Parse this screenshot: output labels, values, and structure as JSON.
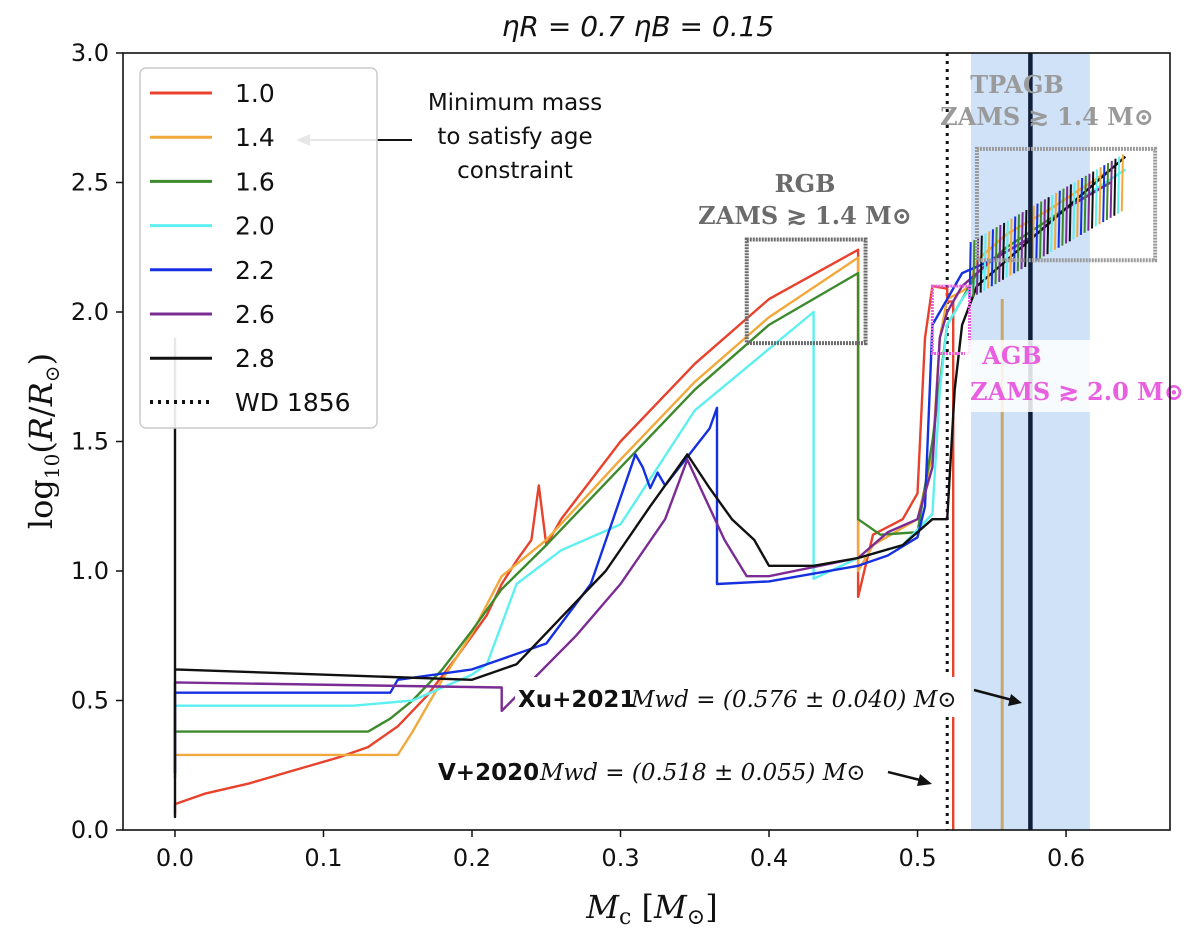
{
  "chart_data": {
    "type": "line",
    "title": "ηR = 0.7  ηB = 0.15",
    "xlabel": "Mc [M⊙]",
    "ylabel": "log10(R/R⊙)",
    "xlim": [
      -0.035,
      0.67
    ],
    "ylim": [
      0.0,
      3.0
    ],
    "xticks": [
      "0.0",
      "0.1",
      "0.2",
      "0.3",
      "0.4",
      "0.5",
      "0.6"
    ],
    "yticks": [
      "0.0",
      "0.5",
      "1.0",
      "1.5",
      "2.0",
      "2.5",
      "3.0"
    ],
    "legend_position": "top-left",
    "series": [
      {
        "name": "1.0",
        "color": "#e8412c",
        "x": [
          0.0,
          0.0,
          0.02,
          0.05,
          0.08,
          0.11,
          0.13,
          0.15,
          0.17,
          0.19,
          0.21,
          0.22,
          0.23,
          0.24,
          0.245,
          0.25,
          0.26,
          0.3,
          0.35,
          0.4,
          0.46,
          0.46,
          0.47,
          0.49,
          0.5,
          0.505,
          0.51,
          0.52,
          0.52,
          0.524,
          0.524
        ],
        "y": [
          0.06,
          0.1,
          0.14,
          0.18,
          0.23,
          0.28,
          0.32,
          0.4,
          0.52,
          0.67,
          0.83,
          0.95,
          1.04,
          1.12,
          1.33,
          1.1,
          1.2,
          1.5,
          1.8,
          2.05,
          2.24,
          0.9,
          1.14,
          1.2,
          1.3,
          1.9,
          2.1,
          2.09,
          2.04,
          2.04,
          0.0
        ]
      },
      {
        "name": "1.4",
        "color": "#f2a93b",
        "x": [
          0.0,
          0.0,
          0.15,
          0.16,
          0.18,
          0.2,
          0.22,
          0.25,
          0.3,
          0.35,
          0.4,
          0.46,
          0.46,
          0.47,
          0.5,
          0.51,
          0.515,
          0.52,
          0.53,
          0.535,
          0.54,
          0.56,
          0.59,
          0.63
        ],
        "y": [
          0.22,
          0.29,
          0.29,
          0.38,
          0.58,
          0.76,
          0.98,
          1.12,
          1.43,
          1.73,
          1.98,
          2.21,
          1.0,
          1.1,
          1.2,
          1.45,
          1.9,
          2.05,
          2.08,
          2.1,
          2.2,
          2.3,
          2.4,
          2.55
        ]
      },
      {
        "name": "1.6",
        "color": "#3d8a2c",
        "x": [
          0.0,
          0.0,
          0.13,
          0.145,
          0.16,
          0.18,
          0.2,
          0.22,
          0.25,
          0.3,
          0.35,
          0.4,
          0.46,
          0.46,
          0.475,
          0.5,
          0.51,
          0.52,
          0.53,
          0.54,
          0.56,
          0.6,
          0.63
        ],
        "y": [
          0.2,
          0.38,
          0.38,
          0.43,
          0.5,
          0.62,
          0.77,
          0.93,
          1.1,
          1.4,
          1.7,
          1.95,
          2.15,
          1.2,
          1.14,
          1.15,
          1.5,
          1.95,
          2.05,
          2.15,
          2.25,
          2.4,
          2.55
        ]
      },
      {
        "name": "2.0",
        "color": "#5ef0f0",
        "x": [
          0.0,
          0.0,
          0.12,
          0.16,
          0.2,
          0.21,
          0.23,
          0.26,
          0.3,
          0.35,
          0.43,
          0.43,
          0.46,
          0.49,
          0.51,
          0.515,
          0.52,
          0.53,
          0.55,
          0.58,
          0.6,
          0.64
        ],
        "y": [
          0.22,
          0.48,
          0.48,
          0.5,
          0.6,
          0.64,
          0.95,
          1.08,
          1.18,
          1.62,
          2.0,
          0.97,
          1.05,
          1.1,
          1.22,
          1.7,
          1.95,
          2.05,
          2.2,
          2.3,
          2.4,
          2.55
        ]
      },
      {
        "name": "2.2",
        "color": "#1530e0",
        "x": [
          0.0,
          0.0,
          0.145,
          0.15,
          0.2,
          0.22,
          0.25,
          0.28,
          0.31,
          0.315,
          0.32,
          0.325,
          0.33,
          0.36,
          0.365,
          0.365,
          0.4,
          0.46,
          0.48,
          0.5,
          0.505,
          0.51,
          0.515,
          0.52,
          0.53,
          0.55,
          0.58,
          0.6,
          0.63
        ],
        "y": [
          0.22,
          0.53,
          0.53,
          0.58,
          0.62,
          0.66,
          0.72,
          0.95,
          1.45,
          1.4,
          1.32,
          1.38,
          1.33,
          1.55,
          1.63,
          0.95,
          0.96,
          1.02,
          1.06,
          1.13,
          1.25,
          1.95,
          2.0,
          2.05,
          2.15,
          2.2,
          2.3,
          2.4,
          2.5
        ]
      },
      {
        "name": "2.6",
        "color": "#7b2c94",
        "x": [
          0.0,
          0.0,
          0.22,
          0.22,
          0.27,
          0.3,
          0.33,
          0.345,
          0.37,
          0.385,
          0.4,
          0.46,
          0.48,
          0.5,
          0.51,
          0.515,
          0.52,
          0.53,
          0.55,
          0.58,
          0.6,
          0.63
        ],
        "y": [
          0.22,
          0.57,
          0.55,
          0.46,
          0.75,
          0.95,
          1.2,
          1.43,
          1.12,
          0.98,
          0.98,
          1.05,
          1.15,
          1.2,
          1.4,
          1.9,
          2.0,
          2.1,
          2.2,
          2.3,
          2.4,
          2.5
        ]
      },
      {
        "name": "2.8",
        "color": "#111111",
        "x": [
          0.0,
          0.0,
          0.0,
          0.2,
          0.23,
          0.26,
          0.29,
          0.32,
          0.345,
          0.36,
          0.375,
          0.39,
          0.4,
          0.43,
          0.46,
          0.49,
          0.5,
          0.51,
          0.52,
          0.525,
          0.53,
          0.54,
          0.57,
          0.6,
          0.64
        ],
        "y": [
          1.9,
          0.05,
          0.62,
          0.58,
          0.64,
          0.82,
          1.0,
          1.25,
          1.45,
          1.32,
          1.2,
          1.12,
          1.02,
          1.02,
          1.05,
          1.1,
          1.15,
          1.2,
          1.2,
          1.7,
          1.95,
          2.1,
          2.25,
          2.4,
          2.6
        ]
      }
    ],
    "wd_lines": [
      {
        "label": "V+2020",
        "value": 0.518,
        "err": 0.055
      },
      {
        "label": "Xu+2021",
        "value": 0.576,
        "err": 0.04
      }
    ],
    "xu_band": [
      0.536,
      0.616
    ],
    "ramp_2_6_color": "#c8a86a",
    "vline_dotted": 0.52,
    "legend_extra": "WD 1856",
    "annotations": {
      "min_mass": [
        "Minimum mass",
        "to satisfy age",
        "constraint"
      ],
      "rgb": {
        "title": "RGB",
        "sub": "ZAMS ≳ 1.4 M⊙",
        "color": "#6b6b6b",
        "x0": 0.385,
        "x1": 0.465,
        "y0": 1.88,
        "y1": 2.28
      },
      "tpagb": {
        "title": "TPAGB",
        "sub": "ZAMS ≳ 1.4 M⊙",
        "color": "#9a9a9a",
        "x0": 0.54,
        "x1": 0.66,
        "y0": 2.2,
        "y1": 2.63
      },
      "agb": {
        "title": "AGB",
        "sub": "ZAMS ≳ 2.0 M⊙",
        "color": "#e860e0",
        "x0": 0.51,
        "x1": 0.535,
        "y0": 1.84,
        "y1": 2.1
      },
      "xu_text": "Xu+2021",
      "xu_eq": "Mwd = (0.576 ± 0.040) M⊙",
      "v_text": "V+2020",
      "v_eq": "Mwd = (0.518 ± 0.055) M⊙"
    }
  }
}
